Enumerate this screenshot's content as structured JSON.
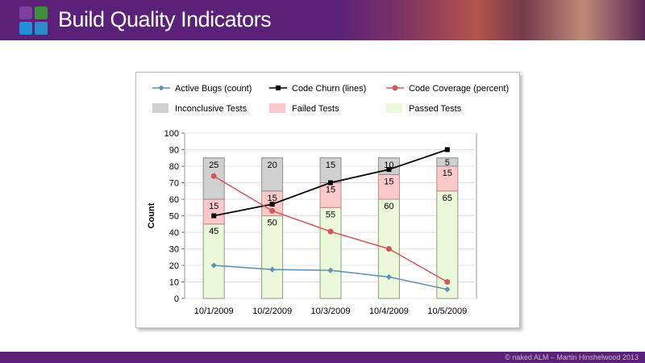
{
  "header": {
    "title": "Build Quality Indicators",
    "brand_color": "#5b2078",
    "logo_colors": [
      "#7b3fa0",
      "#3f8f3a",
      "#1e8fd8",
      "#2a8ccc"
    ]
  },
  "footer": {
    "credit": "© naked ALM – Martin Hinshelwood 2013"
  },
  "chart_data": {
    "type": "bar",
    "stacked": true,
    "title": "",
    "xlabel": "",
    "ylabel": "Count",
    "ylim": [
      0,
      100
    ],
    "yticks": [
      0,
      10,
      20,
      30,
      40,
      50,
      60,
      70,
      80,
      90,
      100
    ],
    "grid": true,
    "legend_position": "top",
    "categories": [
      "10/1/2009",
      "10/2/2009",
      "10/3/2009",
      "10/4/2009",
      "10/5/2009"
    ],
    "bar_series": [
      {
        "name": "Passed Tests",
        "values": [
          45,
          50,
          55,
          60,
          65
        ],
        "color": "#ebf8da",
        "stroke": "#8f9a80"
      },
      {
        "name": "Failed Tests",
        "values": [
          15,
          15,
          15,
          15,
          15
        ],
        "color": "#fbc9c9",
        "stroke": "#b88b8b"
      },
      {
        "name": "Inconclusive Tests",
        "values": [
          25,
          20,
          15,
          10,
          5
        ],
        "color": "#d0d0d0",
        "stroke": "#8c8c8c"
      }
    ],
    "line_series": [
      {
        "name": "Active Bugs (count)",
        "values": [
          20,
          17.5,
          17,
          13,
          5.5
        ],
        "color": "#5b8fb4",
        "marker": "diamond"
      },
      {
        "name": "Code Churn (lines)",
        "values": [
          50,
          57,
          70,
          78,
          90
        ],
        "color": "#000000",
        "marker": "square"
      },
      {
        "name": "Code Coverage (percent)",
        "values": [
          74,
          53,
          40.5,
          30,
          10
        ],
        "color": "#d05a5a",
        "marker": "circle"
      }
    ]
  }
}
